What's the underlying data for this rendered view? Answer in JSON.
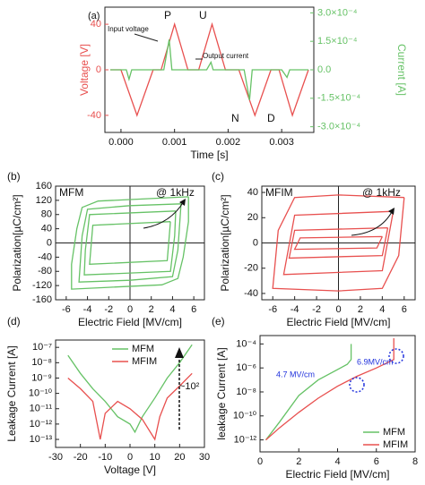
{
  "chart_data": [
    {
      "type": "line",
      "xlabel": "Time [s]",
      "ylabel": "Voltage [V]",
      "y2label": "Current [A]",
      "xlim": [
        -0.0003,
        0.0036
      ],
      "xticks": [
        {
          "value": 0,
          "label": "0.000"
        },
        0.001,
        0.002,
        0.003
      ],
      "ylim": [
        -55,
        55
      ],
      "yticks": [
        -40,
        0,
        40
      ],
      "y2lim": [
        -0.00033,
        0.00033
      ],
      "y2ticks": [
        {
          "value": -0.0003,
          "label": "-3.0×10⁻⁴"
        },
        {
          "value": -0.00015,
          "label": "-1.5×10⁻⁴"
        },
        {
          "value": 0,
          "label": "0.0"
        },
        {
          "value": 0.00015,
          "label": "1.5×10⁻⁴"
        },
        {
          "value": 0.0003,
          "label": "3.0×10⁻⁴"
        }
      ],
      "series": [
        {
          "color": "#e8504f",
          "x": [
            -0.0002,
            0,
            0.0003,
            0.0006,
            0.00075,
            0.001,
            0.00125,
            0.00145,
            0.0017,
            0.00195,
            0.0022,
            0.0025,
            0.0028,
            0.00295,
            0.0032,
            0.0035
          ],
          "values": [
            0,
            0,
            -40,
            0,
            0,
            40,
            0,
            0,
            40,
            0,
            0,
            -40,
            0,
            0,
            -40,
            0
          ]
        },
        {
          "color": "#66c266",
          "axis": "y2",
          "x": [
            -0.0002,
            0.0001,
            0.00015,
            0.0002,
            0.0008,
            0.0009,
            0.00095,
            0.0016,
            0.00168,
            0.00172,
            0.0023,
            0.0024,
            0.00245,
            0.003,
            0.0031,
            0.00315,
            0.0035
          ],
          "values": [
            0,
            0,
            -5e-05,
            0,
            0,
            0.00016,
            0,
            0,
            4e-05,
            0,
            0,
            -0.00016,
            0,
            0,
            -4e-05,
            0,
            0
          ]
        }
      ],
      "annotations": [
        "(a)",
        "P",
        "U",
        "N",
        "D",
        "Input voltage",
        "Output current"
      ]
    },
    {
      "type": "line",
      "xlabel": "Electric Field [MV/cm]",
      "ylabel": "Polarization[µC/cm²]",
      "xlim": [
        -7,
        7
      ],
      "xticks": [
        -6,
        -4,
        -2,
        0,
        2,
        4,
        6
      ],
      "ylim": [
        -160,
        160
      ],
      "yticks": [
        -160,
        -120,
        -80,
        -40,
        0,
        40,
        80,
        120,
        160
      ],
      "series": [
        {
          "color": "#66c266",
          "x": [
            5.5,
            2,
            -3,
            -4.5,
            -5,
            -5.5,
            -5.5,
            -2,
            3,
            4.5,
            5,
            5.5,
            5.5
          ],
          "values": [
            130,
            125,
            118,
            100,
            40,
            -60,
            -130,
            -125,
            -118,
            -100,
            -40,
            60,
            130
          ]
        },
        {
          "color": "#66c266",
          "x": [
            4.8,
            0,
            -4,
            -4.5,
            -4.8,
            0,
            4,
            4.5,
            4.8
          ],
          "values": [
            110,
            105,
            95,
            20,
            -110,
            -105,
            -95,
            -20,
            110
          ]
        },
        {
          "color": "#66c266",
          "x": [
            4.3,
            -3.8,
            -4.2,
            -4.3,
            3.8,
            4.2,
            4.3
          ],
          "values": [
            90,
            80,
            -20,
            -90,
            -80,
            20,
            90
          ]
        },
        {
          "color": "#66c266",
          "x": [
            3.8,
            -3.5,
            -3.8,
            3.5,
            3.8
          ],
          "values": [
            60,
            50,
            -60,
            -50,
            60
          ]
        }
      ],
      "annotations": [
        "(b)",
        "MFM",
        "@ 1kHz"
      ]
    },
    {
      "type": "line",
      "xlabel": "Electric Field [MV/cm]",
      "ylabel": "Polarization[µC/cm²]",
      "xlim": [
        -7,
        7
      ],
      "xticks": [
        -6,
        -4,
        -2,
        0,
        2,
        4,
        6
      ],
      "ylim": [
        -45,
        45
      ],
      "yticks": [
        -40,
        -20,
        0,
        20,
        40
      ],
      "series": [
        {
          "color": "#e8504f",
          "x": [
            6,
            0,
            -4,
            -5.5,
            -6,
            0,
            4,
            5.5,
            6
          ],
          "values": [
            36,
            38,
            36,
            10,
            -36,
            -38,
            -36,
            -10,
            36
          ]
        },
        {
          "color": "#e8504f",
          "x": [
            5,
            -4,
            -5,
            4,
            5
          ],
          "values": [
            25,
            22,
            -25,
            -22,
            25
          ]
        },
        {
          "color": "#e8504f",
          "x": [
            4.5,
            -4,
            -4.5,
            4,
            4.5
          ],
          "values": [
            12,
            10,
            -12,
            -10,
            12
          ]
        },
        {
          "color": "#e8504f",
          "x": [
            4,
            -3.5,
            -4,
            3.5,
            4
          ],
          "values": [
            5,
            4,
            -5,
            -4,
            5
          ]
        }
      ],
      "annotations": [
        "(c)",
        "MFIM",
        "@ 1kHz"
      ]
    },
    {
      "type": "line",
      "xlabel": "Voltage [V]",
      "ylabel": "Leakage Current [A]",
      "ylog": true,
      "xlim": [
        -30,
        30
      ],
      "xticks": [
        -30,
        -20,
        -10,
        0,
        10,
        20,
        30
      ],
      "ylim": [
        3e-14,
        3e-07
      ],
      "yticks": [
        {
          "value": 1e-13,
          "label": "10⁻¹³"
        },
        {
          "value": 1e-12,
          "label": "10⁻¹²"
        },
        {
          "value": 1e-11,
          "label": "10⁻¹¹"
        },
        {
          "value": 1e-10,
          "label": "10⁻¹⁰"
        },
        {
          "value": 1e-09,
          "label": "10⁻⁹"
        },
        {
          "value": 1e-08,
          "label": "10⁻⁸"
        },
        {
          "value": 1e-07,
          "label": "10⁻⁷"
        }
      ],
      "legend": "upper center",
      "series": [
        {
          "name": "MFM",
          "color": "#66c266",
          "x": [
            -25,
            -20,
            -15,
            -10,
            -5,
            0,
            2,
            5,
            10,
            15,
            20,
            25
          ],
          "values": [
            3e-08,
            2e-09,
            2e-10,
            3e-11,
            3e-12,
            1e-12,
            3e-13,
            3e-12,
            5e-11,
            1e-09,
            1e-08,
            1.5e-07
          ]
        },
        {
          "name": "MFIM",
          "color": "#e8504f",
          "x": [
            -25,
            -20,
            -15,
            -12,
            -10,
            -5,
            0,
            5,
            10,
            12,
            15,
            20,
            25
          ],
          "values": [
            1e-09,
            2e-10,
            3e-11,
            1e-13,
            5e-12,
            3e-11,
            1e-11,
            2e-12,
            1e-13,
            3e-12,
            5e-11,
            3e-10,
            2e-09
          ]
        }
      ],
      "annotations": [
        "(d)",
        "~10²"
      ]
    },
    {
      "type": "line",
      "xlabel": "Electric Field [MV/cm]",
      "ylabel": "leakage Current [A]",
      "ylog": true,
      "xlim": [
        0,
        8
      ],
      "xticks": [
        0,
        2,
        4,
        6,
        8
      ],
      "ylim": [
        1e-13,
        0.0005
      ],
      "yticks": [
        {
          "value": 1e-12,
          "label": "10⁻¹²"
        },
        {
          "value": 1e-10,
          "label": "10⁻¹⁰"
        },
        {
          "value": 1e-08,
          "label": "10⁻⁸"
        },
        {
          "value": 1e-06,
          "label": "10⁻⁶"
        },
        {
          "value": 0.0001,
          "label": "10⁻⁴"
        }
      ],
      "legend": "lower right",
      "series": [
        {
          "name": "MFM",
          "color": "#66c266",
          "x": [
            0.3,
            1,
            2,
            3,
            4.5,
            4.7,
            4.7
          ],
          "values": [
            1e-12,
            3e-11,
            5e-09,
            1e-07,
            2e-06,
            5e-06,
            0.0001
          ]
        },
        {
          "name": "MFIM",
          "color": "#e8504f",
          "x": [
            0.3,
            1,
            2,
            3,
            4,
            5,
            6,
            6.9,
            6.9
          ],
          "values": [
            1e-12,
            1e-11,
            2e-10,
            3e-09,
            3e-08,
            2e-07,
            1e-06,
            5e-06,
            0.0003
          ]
        }
      ],
      "annotations": [
        "(e)",
        "4.7 MV/cm",
        "6.9MV/cm"
      ]
    }
  ]
}
